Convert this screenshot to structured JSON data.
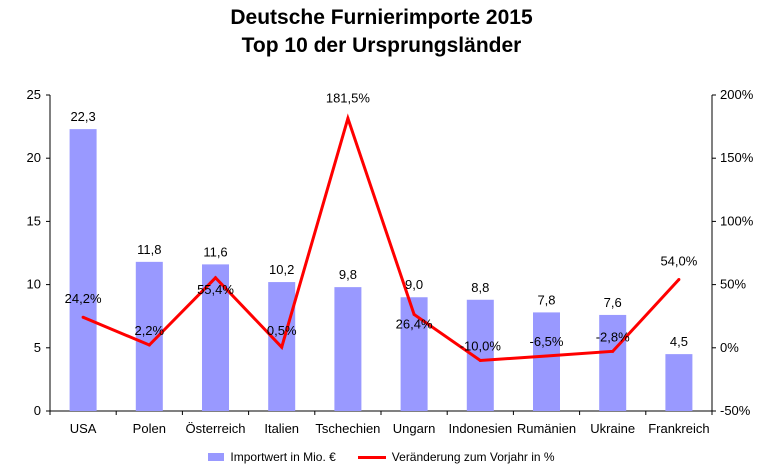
{
  "chart_data": {
    "type": "bar",
    "title": "Deutsche Furnierimporte 2015",
    "subtitle": "Top 10 der Ursprungsländer",
    "categories": [
      "USA",
      "Polen",
      "Österreich",
      "Italien",
      "Tschechien",
      "Ungarn",
      "Indonesien",
      "Rumänien",
      "Ukraine",
      "Frankreich"
    ],
    "series": [
      {
        "name": "Importwert in Mio. €",
        "type": "bar",
        "axis": "left",
        "color": "#9999ff",
        "values": [
          22.3,
          11.8,
          11.6,
          10.2,
          9.8,
          9.0,
          8.8,
          7.8,
          7.6,
          4.5
        ],
        "labels": [
          "22,3",
          "11,8",
          "11,6",
          "10,2",
          "9,8",
          "9,0",
          "8,8",
          "7,8",
          "7,6",
          "4,5"
        ]
      },
      {
        "name": "Veränderung zum Vorjahr in %",
        "type": "line",
        "axis": "right",
        "color": "#ff0000",
        "values": [
          24.2,
          2.2,
          55.4,
          0.5,
          181.5,
          26.4,
          -10.0,
          -6.5,
          -2.8,
          54.0
        ],
        "labels": [
          "24,2%",
          "2,2%",
          "55,4%",
          "0,5%",
          "181,5%",
          "26,4%",
          "-10,0%",
          "-6,5%",
          "-2,8%",
          "54,0%"
        ]
      }
    ],
    "y_left": {
      "ylim": [
        0,
        25
      ],
      "ticks": [
        "0",
        "5",
        "10",
        "15",
        "20",
        "25"
      ]
    },
    "y_right": {
      "ylim": [
        -50,
        200
      ],
      "ticks": [
        "-50%",
        "0%",
        "50%",
        "100%",
        "150%",
        "200%"
      ]
    },
    "grid": false,
    "legend": "bottom"
  }
}
